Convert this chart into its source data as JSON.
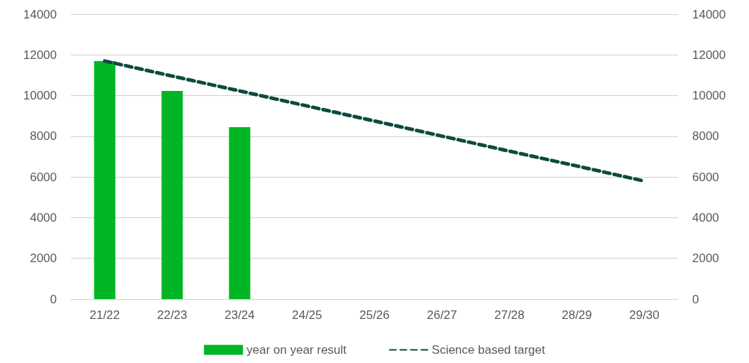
{
  "chart_data": {
    "type": "bar",
    "categories": [
      "21/22",
      "22/23",
      "23/24",
      "24/25",
      "25/26",
      "26/27",
      "27/28",
      "28/29",
      "29/30"
    ],
    "series": [
      {
        "name": "year on year result",
        "color": "#00b624",
        "values": [
          11700,
          10230,
          8450,
          null,
          null,
          null,
          null,
          null,
          null
        ]
      },
      {
        "name": "Science based target",
        "type": "line",
        "color": "#0d4a3f",
        "line_style": "dashed",
        "marker": "none",
        "values": [
          11700,
          10960,
          10230,
          9490,
          8750,
          8010,
          7270,
          6540,
          5800
        ]
      }
    ],
    "ylim": [
      0,
      14000
    ],
    "yticks": [
      0,
      2000,
      4000,
      6000,
      8000,
      10000,
      12000,
      14000
    ],
    "y2lim": [
      0,
      14000
    ],
    "y2ticks": [
      0,
      2000,
      4000,
      6000,
      8000,
      10000,
      12000,
      14000
    ],
    "grid": "y",
    "legend": "bottom"
  }
}
